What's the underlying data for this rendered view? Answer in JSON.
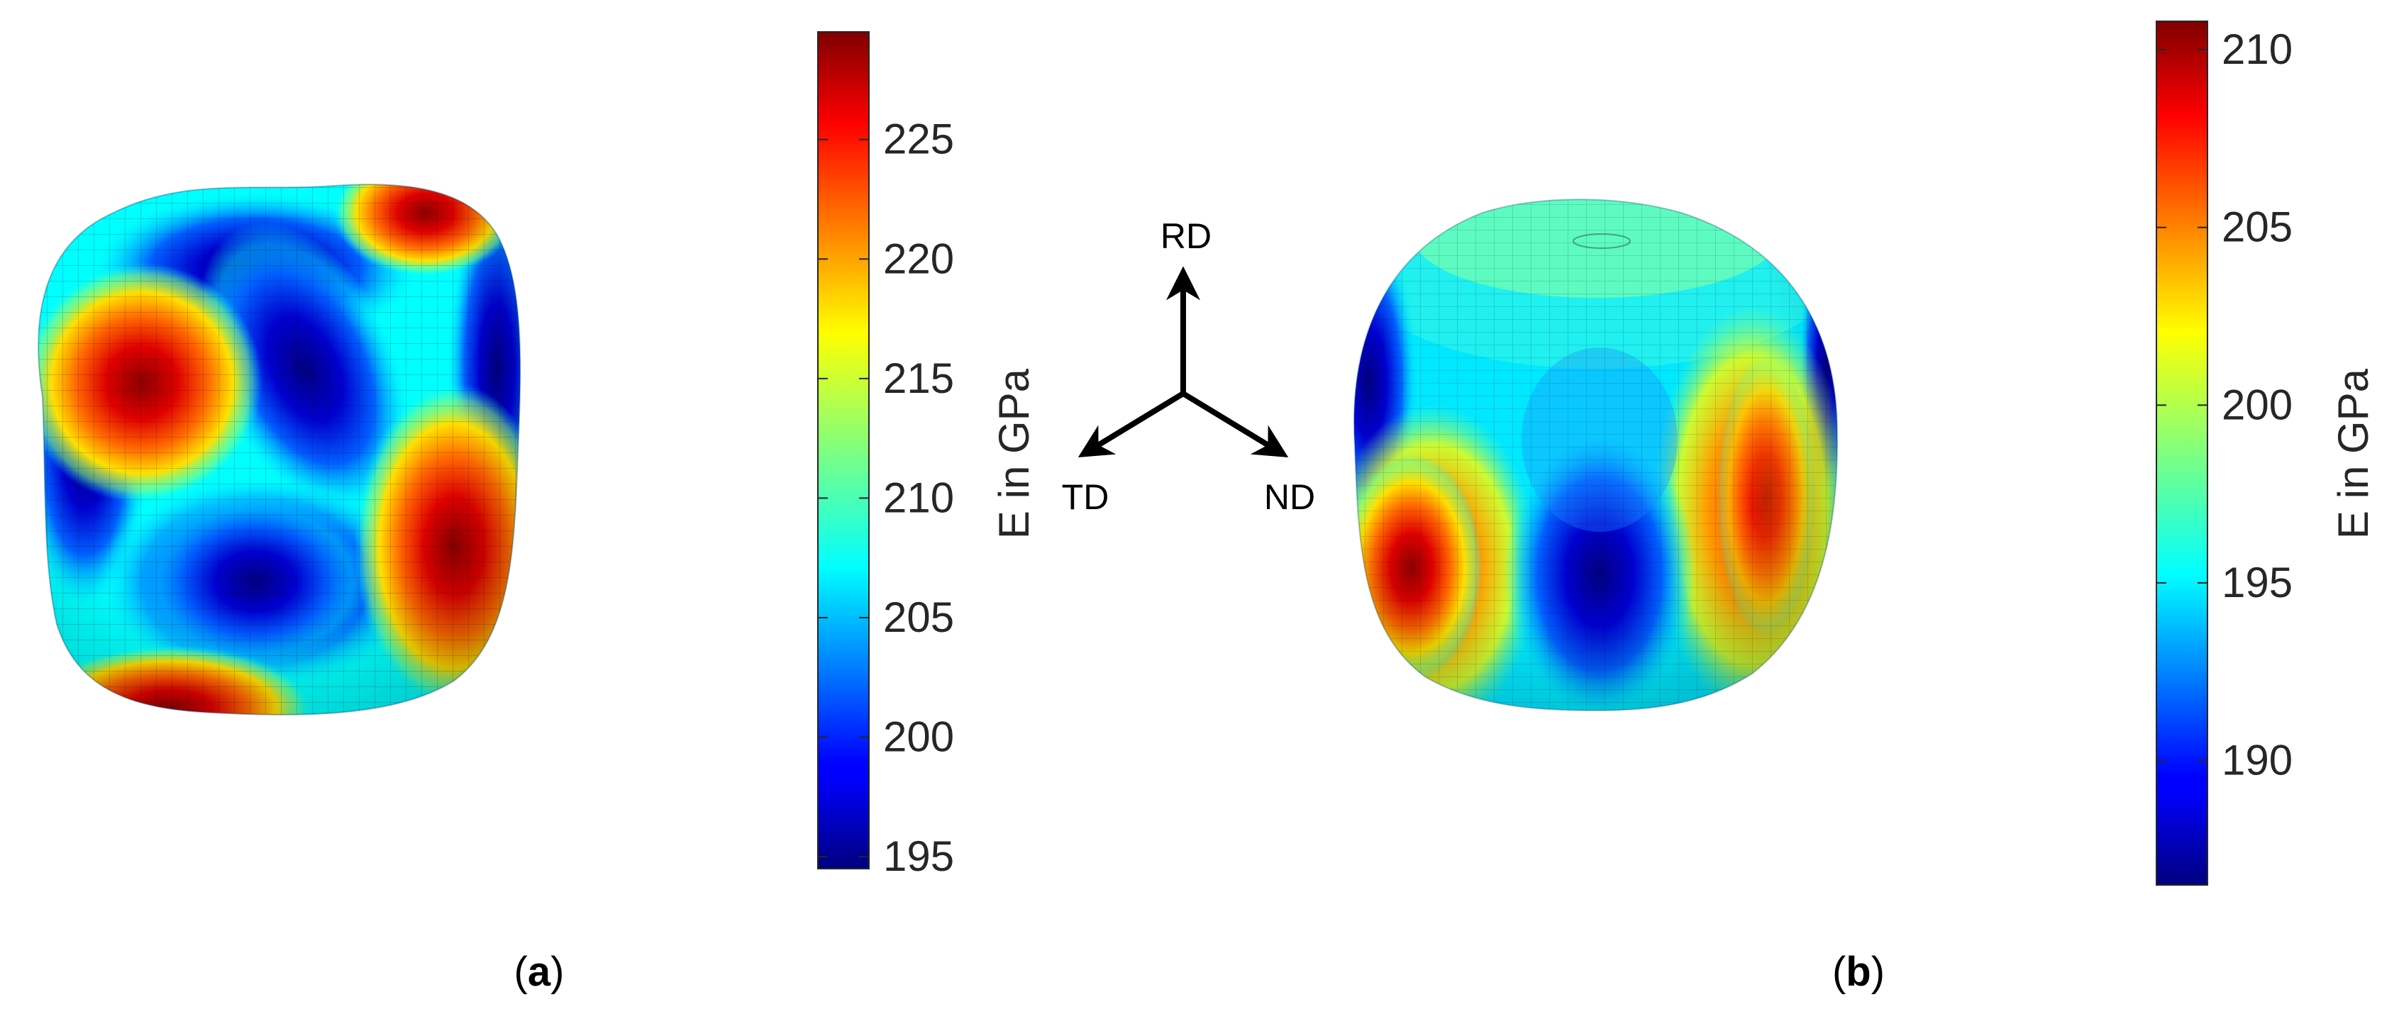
{
  "panel_a": {
    "caption_open": "(",
    "caption_letter": "a",
    "caption_close": ")",
    "colorbar": {
      "label": "E in GPa",
      "ticks": [
        "195",
        "200",
        "205",
        "210",
        "215",
        "220",
        "225"
      ],
      "range": [
        194.5,
        229.5
      ]
    }
  },
  "panel_b": {
    "caption_open": "(",
    "caption_letter": "b",
    "caption_close": ")",
    "colorbar": {
      "label": "E in GPa",
      "ticks": [
        "190",
        "195",
        "200",
        "205",
        "210"
      ],
      "range": [
        186.5,
        210.8
      ]
    }
  },
  "axes_triad": {
    "rd_label": "RD",
    "td_label": "TD",
    "nd_label": "ND"
  },
  "colormap": "jet"
}
